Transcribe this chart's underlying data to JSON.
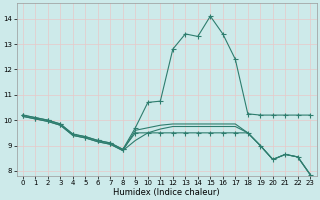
{
  "xlabel": "Humidex (Indice chaleur)",
  "xlim": [
    -0.5,
    23.5
  ],
  "ylim": [
    7.8,
    14.6
  ],
  "yticks": [
    8,
    9,
    10,
    11,
    12,
    13,
    14
  ],
  "xticks": [
    0,
    1,
    2,
    3,
    4,
    5,
    6,
    7,
    8,
    9,
    10,
    11,
    12,
    13,
    14,
    15,
    16,
    17,
    18,
    19,
    20,
    21,
    22,
    23
  ],
  "bg_color": "#cdeaea",
  "grid_color": "#e8c8c8",
  "line_color": "#2e7d6e",
  "curve1_x": [
    0,
    1,
    2,
    3,
    4,
    5,
    6,
    7,
    8,
    9,
    10,
    11,
    12,
    13,
    14,
    15,
    16,
    17,
    18,
    19,
    20,
    21,
    22,
    23
  ],
  "curve1_y": [
    10.2,
    10.1,
    10.0,
    9.85,
    9.45,
    9.35,
    9.2,
    9.1,
    8.85,
    9.7,
    10.7,
    10.75,
    12.8,
    13.4,
    13.3,
    14.1,
    13.4,
    12.4,
    10.25,
    10.2,
    10.2,
    10.2,
    10.2,
    10.2
  ],
  "curve2_x": [
    0,
    1,
    2,
    3,
    4,
    5,
    6,
    7,
    8,
    9,
    10,
    11,
    12,
    13,
    14,
    15,
    16,
    17,
    18,
    19,
    20,
    21,
    22,
    23
  ],
  "curve2_y": [
    10.2,
    10.1,
    10.0,
    9.85,
    9.45,
    9.35,
    9.2,
    9.1,
    8.85,
    9.5,
    9.5,
    9.5,
    9.5,
    9.5,
    9.5,
    9.5,
    9.5,
    9.5,
    9.5,
    9.0,
    8.45,
    8.65,
    8.55,
    7.85
  ],
  "curve3_x": [
    0,
    1,
    2,
    3,
    4,
    5,
    6,
    7,
    8,
    9,
    10,
    11,
    12,
    13,
    14,
    15,
    16,
    17,
    18,
    19,
    20,
    21,
    22,
    23
  ],
  "curve3_y": [
    10.15,
    10.05,
    9.95,
    9.8,
    9.4,
    9.3,
    9.15,
    9.05,
    8.8,
    9.6,
    9.7,
    9.8,
    9.85,
    9.85,
    9.85,
    9.85,
    9.85,
    9.85,
    9.5,
    9.0,
    8.45,
    8.65,
    8.55,
    7.85
  ],
  "curve4_x": [
    0,
    1,
    2,
    3,
    4,
    5,
    6,
    7,
    8,
    9,
    10,
    11,
    12,
    13,
    14,
    15,
    16,
    17,
    18,
    19,
    20,
    21,
    22,
    23
  ],
  "curve4_y": [
    10.15,
    10.05,
    9.95,
    9.8,
    9.4,
    9.3,
    9.15,
    9.05,
    8.8,
    9.2,
    9.5,
    9.65,
    9.75,
    9.75,
    9.75,
    9.75,
    9.75,
    9.75,
    9.5,
    9.0,
    8.45,
    8.65,
    8.55,
    7.85
  ]
}
